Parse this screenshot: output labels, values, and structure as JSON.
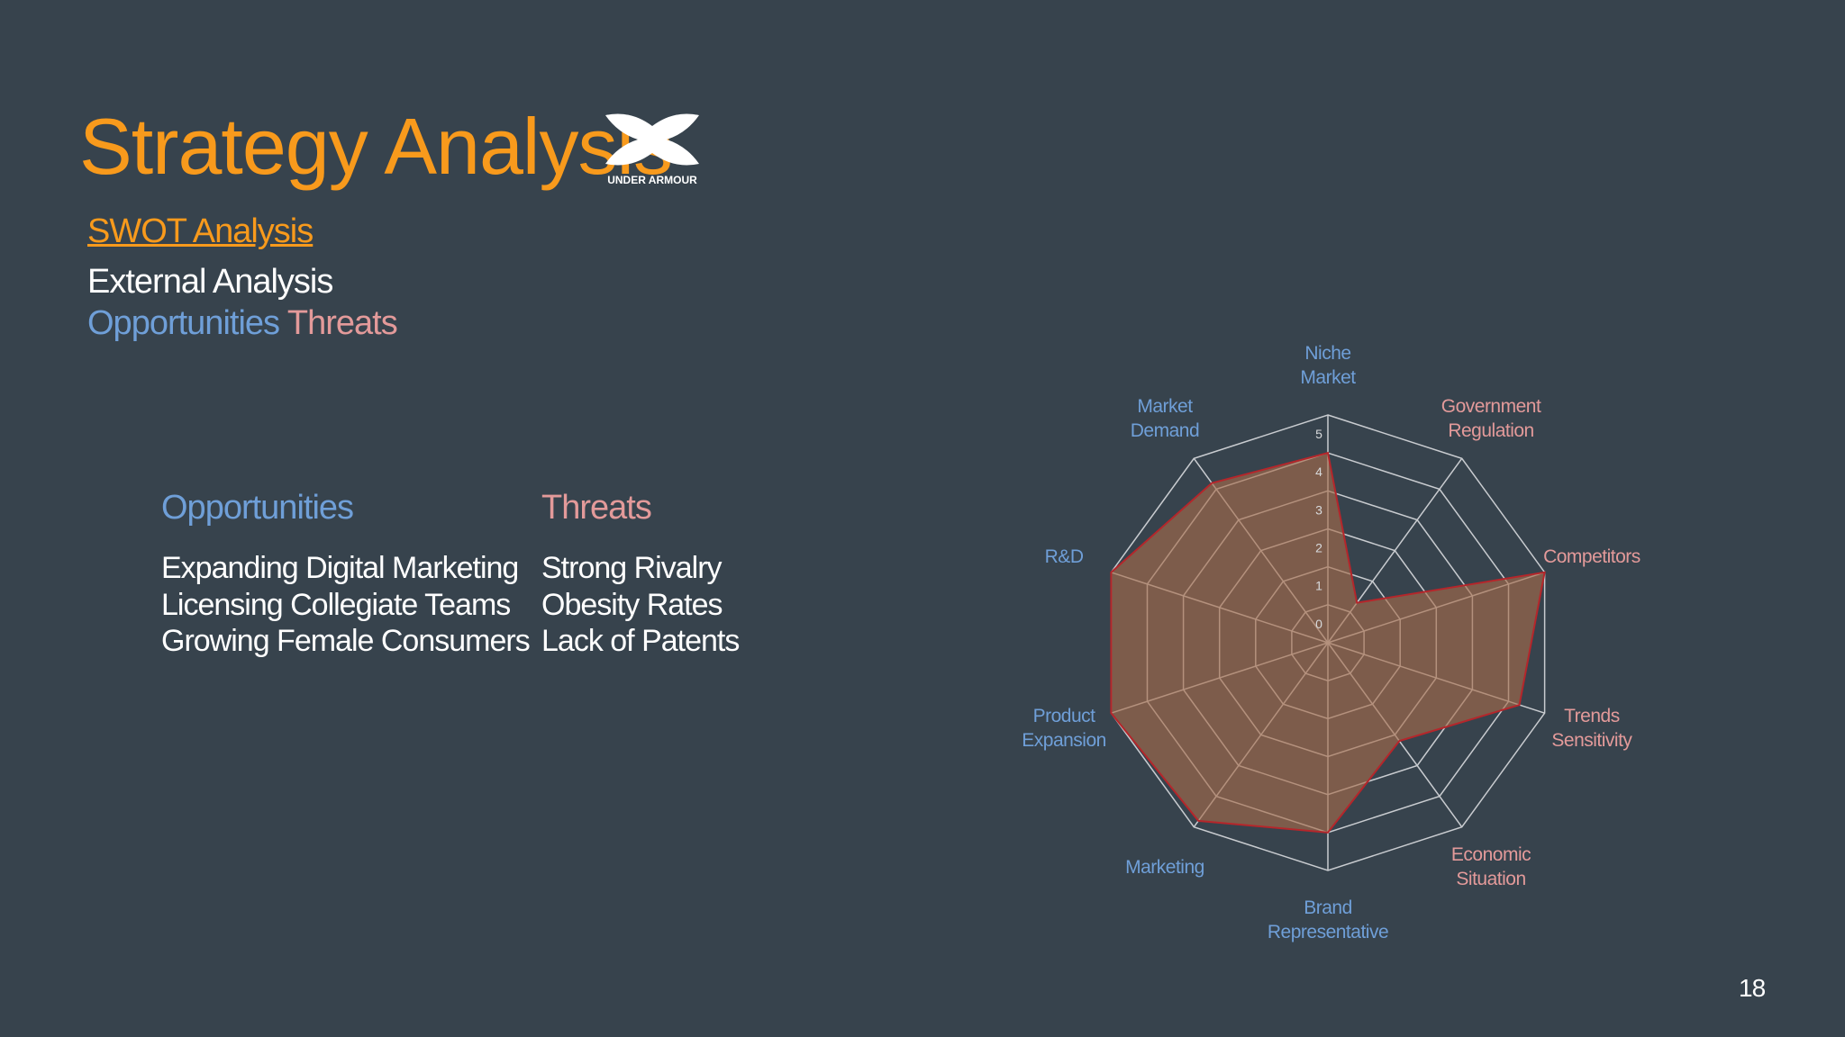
{
  "header": {
    "title": "Strategy Analysis",
    "logo_text": "UNDER ARMOUR"
  },
  "nav": {
    "link": "SWOT Analysis",
    "section": "External Analysis",
    "opportunities": "Opportunities",
    "threats": "Threats"
  },
  "columns": [
    {
      "heading": "Opportunities",
      "items": [
        "Expanding Digital Marketing",
        "Licensing Collegiate Teams",
        "Growing Female Consumers"
      ]
    },
    {
      "heading": "Threats",
      "items": [
        "Strong Rivalry",
        "Obesity Rates",
        "Lack of Patents"
      ]
    }
  ],
  "page_number": "18",
  "chart_data": {
    "type": "radar",
    "categories": [
      "Niche Market",
      "Government Regulation",
      "Competitors",
      "Trends Sensitivity",
      "Economic Situation",
      "Brand Representative",
      "Marketing",
      "Product Expansion",
      "R&D",
      "Market Demand"
    ],
    "category_colors": [
      "#6f9fd8",
      "#e39a9a",
      "#e39a9a",
      "#e39a9a",
      "#e39a9a",
      "#6f9fd8",
      "#6f9fd8",
      "#6f9fd8",
      "#6f9fd8",
      "#6f9fd8"
    ],
    "series": [
      {
        "color": "#b5262b",
        "values": [
          4,
          0.3,
          5,
          4.3,
          2.2,
          4,
          4.8,
          5,
          5,
          4.2
        ]
      }
    ],
    "ylim": [
      -1,
      5
    ],
    "yticks": [
      0,
      1,
      2,
      3,
      4,
      5
    ],
    "grid": true
  }
}
